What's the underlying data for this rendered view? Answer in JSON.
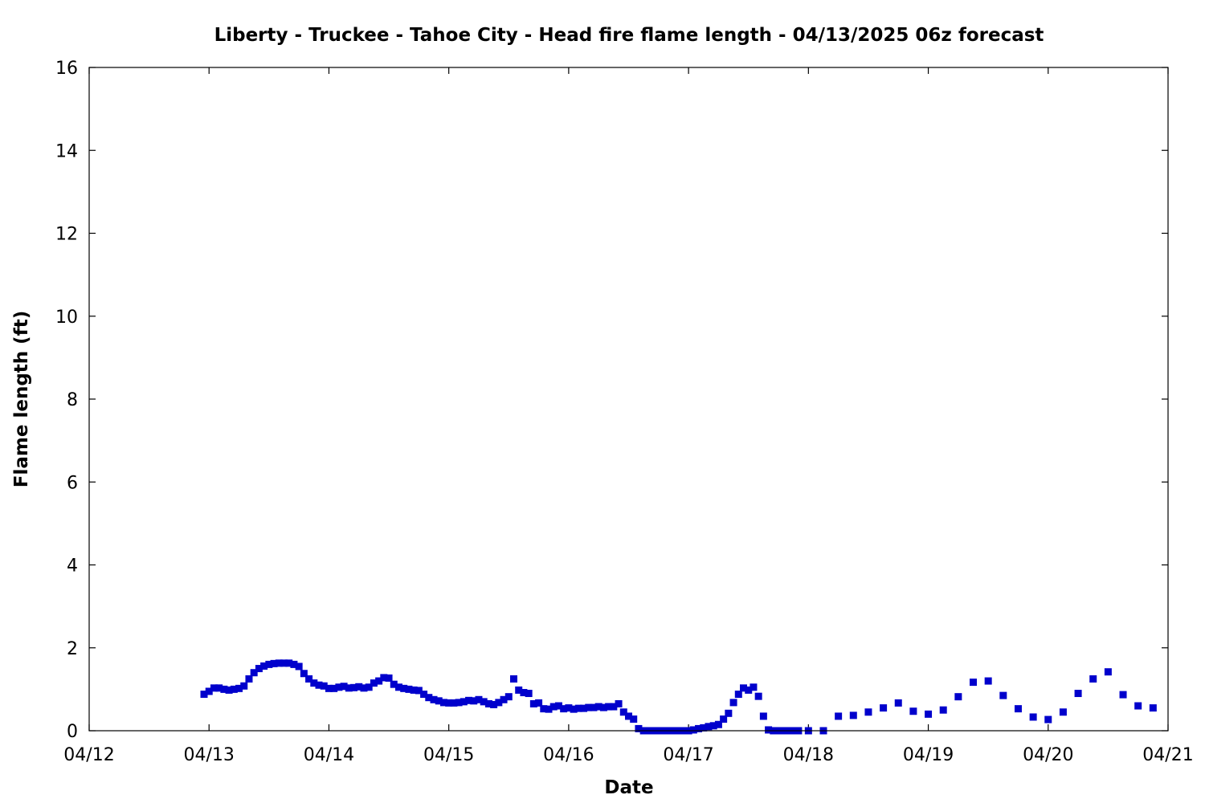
{
  "chart_data": {
    "type": "scatter",
    "title": "Liberty - Truckee - Tahoe City - Head fire flame length - 04/13/2025 06z forecast",
    "xlabel": "Date",
    "ylabel": "Flame length (ft)",
    "x_tick_labels": [
      "04/12",
      "04/13",
      "04/14",
      "04/15",
      "04/16",
      "04/17",
      "04/18",
      "04/19",
      "04/20",
      "04/21"
    ],
    "y_tick_labels": [
      "0",
      "2",
      "4",
      "6",
      "8",
      "10",
      "12",
      "14",
      "16"
    ],
    "xlim": [
      "04/12",
      "04/21"
    ],
    "ylim": [
      0,
      16
    ],
    "grid": false,
    "marker": "square",
    "series_color": "#0000cc",
    "series": [
      {
        "name": "",
        "points": [
          [
            "04/12 23:00",
            0.88
          ],
          [
            "04/13 00:00",
            0.95
          ],
          [
            "04/13 01:00",
            1.03
          ],
          [
            "04/13 02:00",
            1.03
          ],
          [
            "04/13 03:00",
            1.0
          ],
          [
            "04/13 04:00",
            0.98
          ],
          [
            "04/13 05:00",
            1.0
          ],
          [
            "04/13 06:00",
            1.02
          ],
          [
            "04/13 07:00",
            1.08
          ],
          [
            "04/13 08:00",
            1.25
          ],
          [
            "04/13 09:00",
            1.4
          ],
          [
            "04/13 10:00",
            1.5
          ],
          [
            "04/13 11:00",
            1.56
          ],
          [
            "04/13 12:00",
            1.6
          ],
          [
            "04/13 13:00",
            1.62
          ],
          [
            "04/13 14:00",
            1.63
          ],
          [
            "04/13 15:00",
            1.63
          ],
          [
            "04/13 16:00",
            1.63
          ],
          [
            "04/13 17:00",
            1.6
          ],
          [
            "04/13 18:00",
            1.55
          ],
          [
            "04/13 19:00",
            1.38
          ],
          [
            "04/13 20:00",
            1.25
          ],
          [
            "04/13 21:00",
            1.15
          ],
          [
            "04/13 22:00",
            1.1
          ],
          [
            "04/13 23:00",
            1.08
          ],
          [
            "04/14 00:00",
            1.02
          ],
          [
            "04/14 01:00",
            1.02
          ],
          [
            "04/14 02:00",
            1.05
          ],
          [
            "04/14 03:00",
            1.07
          ],
          [
            "04/14 04:00",
            1.03
          ],
          [
            "04/14 05:00",
            1.04
          ],
          [
            "04/14 06:00",
            1.06
          ],
          [
            "04/14 07:00",
            1.03
          ],
          [
            "04/14 08:00",
            1.05
          ],
          [
            "04/14 09:00",
            1.15
          ],
          [
            "04/14 10:00",
            1.2
          ],
          [
            "04/14 11:00",
            1.28
          ],
          [
            "04/14 12:00",
            1.27
          ],
          [
            "04/14 13:00",
            1.12
          ],
          [
            "04/14 14:00",
            1.05
          ],
          [
            "04/14 15:00",
            1.02
          ],
          [
            "04/14 16:00",
            1.0
          ],
          [
            "04/14 17:00",
            0.98
          ],
          [
            "04/14 18:00",
            0.97
          ],
          [
            "04/14 19:00",
            0.88
          ],
          [
            "04/14 20:00",
            0.8
          ],
          [
            "04/14 21:00",
            0.75
          ],
          [
            "04/14 22:00",
            0.72
          ],
          [
            "04/14 23:00",
            0.68
          ],
          [
            "04/15 00:00",
            0.67
          ],
          [
            "04/15 01:00",
            0.67
          ],
          [
            "04/15 02:00",
            0.68
          ],
          [
            "04/15 03:00",
            0.7
          ],
          [
            "04/15 04:00",
            0.73
          ],
          [
            "04/15 05:00",
            0.72
          ],
          [
            "04/15 06:00",
            0.75
          ],
          [
            "04/15 07:00",
            0.7
          ],
          [
            "04/15 08:00",
            0.65
          ],
          [
            "04/15 09:00",
            0.63
          ],
          [
            "04/15 10:00",
            0.68
          ],
          [
            "04/15 11:00",
            0.75
          ],
          [
            "04/15 12:00",
            0.82
          ],
          [
            "04/15 13:00",
            1.25
          ],
          [
            "04/15 14:00",
            0.98
          ],
          [
            "04/15 15:00",
            0.92
          ],
          [
            "04/15 16:00",
            0.9
          ],
          [
            "04/15 17:00",
            0.65
          ],
          [
            "04/15 18:00",
            0.67
          ],
          [
            "04/15 19:00",
            0.53
          ],
          [
            "04/15 20:00",
            0.52
          ],
          [
            "04/15 21:00",
            0.58
          ],
          [
            "04/15 22:00",
            0.6
          ],
          [
            "04/15 23:00",
            0.53
          ],
          [
            "04/16 00:00",
            0.55
          ],
          [
            "04/16 01:00",
            0.52
          ],
          [
            "04/16 02:00",
            0.54
          ],
          [
            "04/16 03:00",
            0.54
          ],
          [
            "04/16 04:00",
            0.56
          ],
          [
            "04/16 05:00",
            0.56
          ],
          [
            "04/16 06:00",
            0.58
          ],
          [
            "04/16 07:00",
            0.56
          ],
          [
            "04/16 08:00",
            0.58
          ],
          [
            "04/16 09:00",
            0.58
          ],
          [
            "04/16 10:00",
            0.65
          ],
          [
            "04/16 11:00",
            0.45
          ],
          [
            "04/16 12:00",
            0.35
          ],
          [
            "04/16 13:00",
            0.28
          ],
          [
            "04/16 14:00",
            0.05
          ],
          [
            "04/16 15:00",
            0.0
          ],
          [
            "04/16 16:00",
            0.0
          ],
          [
            "04/16 17:00",
            0.0
          ],
          [
            "04/16 18:00",
            0.0
          ],
          [
            "04/16 19:00",
            0.0
          ],
          [
            "04/16 20:00",
            0.0
          ],
          [
            "04/16 21:00",
            0.0
          ],
          [
            "04/16 22:00",
            0.0
          ],
          [
            "04/16 23:00",
            0.0
          ],
          [
            "04/17 00:00",
            0.0
          ],
          [
            "04/17 01:00",
            0.02
          ],
          [
            "04/17 02:00",
            0.05
          ],
          [
            "04/17 03:00",
            0.07
          ],
          [
            "04/17 04:00",
            0.1
          ],
          [
            "04/17 05:00",
            0.12
          ],
          [
            "04/17 06:00",
            0.15
          ],
          [
            "04/17 07:00",
            0.28
          ],
          [
            "04/17 08:00",
            0.42
          ],
          [
            "04/17 09:00",
            0.68
          ],
          [
            "04/17 10:00",
            0.88
          ],
          [
            "04/17 11:00",
            1.03
          ],
          [
            "04/17 12:00",
            0.98
          ],
          [
            "04/17 13:00",
            1.05
          ],
          [
            "04/17 14:00",
            0.83
          ],
          [
            "04/17 15:00",
            0.35
          ],
          [
            "04/17 16:00",
            0.02
          ],
          [
            "04/17 17:00",
            0.0
          ],
          [
            "04/17 18:00",
            0.0
          ],
          [
            "04/17 19:00",
            0.0
          ],
          [
            "04/17 20:00",
            0.0
          ],
          [
            "04/17 21:00",
            0.0
          ],
          [
            "04/17 22:00",
            0.0
          ],
          [
            "04/18 00:00",
            0.0
          ],
          [
            "04/18 03:00",
            0.0
          ],
          [
            "04/18 06:00",
            0.35
          ],
          [
            "04/18 09:00",
            0.37
          ],
          [
            "04/18 12:00",
            0.45
          ],
          [
            "04/18 15:00",
            0.55
          ],
          [
            "04/18 18:00",
            0.67
          ],
          [
            "04/18 21:00",
            0.47
          ],
          [
            "04/19 00:00",
            0.4
          ],
          [
            "04/19 03:00",
            0.5
          ],
          [
            "04/19 06:00",
            0.82
          ],
          [
            "04/19 09:00",
            1.17
          ],
          [
            "04/19 12:00",
            1.2
          ],
          [
            "04/19 15:00",
            0.85
          ],
          [
            "04/19 18:00",
            0.53
          ],
          [
            "04/19 21:00",
            0.33
          ],
          [
            "04/20 00:00",
            0.27
          ],
          [
            "04/20 03:00",
            0.45
          ],
          [
            "04/20 06:00",
            0.9
          ],
          [
            "04/20 09:00",
            1.25
          ],
          [
            "04/20 12:00",
            1.42
          ],
          [
            "04/20 15:00",
            0.87
          ],
          [
            "04/20 18:00",
            0.6
          ],
          [
            "04/20 21:00",
            0.55
          ]
        ]
      }
    ]
  }
}
